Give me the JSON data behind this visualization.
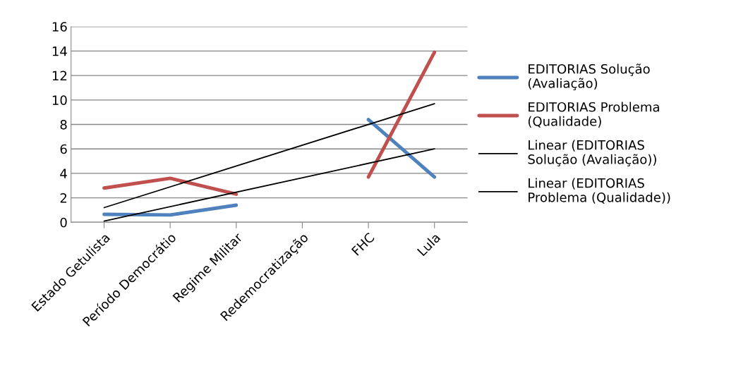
{
  "chart_data": {
    "type": "line",
    "categories": [
      "Estado Getulista",
      "Período Democrátio",
      "Regime Militar",
      "Redemocratização",
      "FHC",
      "Lula"
    ],
    "series": [
      {
        "name": "EDITORIAS Solução (Avaliação)",
        "color": "#4f81bd",
        "values": [
          0.65,
          0.6,
          1.4,
          null,
          8.4,
          3.7
        ]
      },
      {
        "name": "EDITORIAS Problema (Qualidade)",
        "color": "#c0504d",
        "values": [
          2.8,
          3.6,
          2.3,
          null,
          3.7,
          13.9
        ]
      },
      {
        "name": "Linear (EDITORIAS Solução (Avaliação))",
        "color": "#000000",
        "x": [
          "Estado Getulista",
          "Lula"
        ],
        "values": [
          0.1,
          6.0
        ]
      },
      {
        "name": "Linear (EDITORIAS Problema (Qualidade))",
        "color": "#000000",
        "x": [
          "Estado Getulista",
          "Lula"
        ],
        "values": [
          1.2,
          9.7
        ]
      }
    ],
    "ylim": [
      0,
      16
    ],
    "yticks": [
      0,
      2,
      4,
      6,
      8,
      10,
      12,
      14,
      16
    ],
    "grid": "y",
    "legend": "right",
    "marker": "none",
    "line_style": "solid"
  }
}
